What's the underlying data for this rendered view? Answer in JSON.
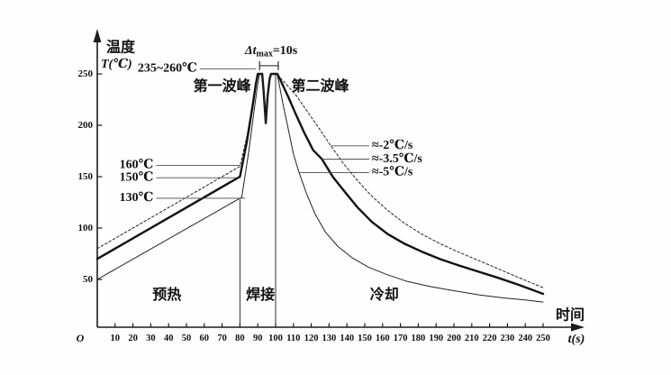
{
  "figure": {
    "description_zone_labels": [
      "预热",
      "焊接",
      "冷却"
    ]
  },
  "chart_data": {
    "type": "line",
    "title": "",
    "xlabel": "时间",
    "xlabel_unit": "t(s)",
    "ylabel": "温度",
    "ylabel_unit": "T(℃)",
    "origin_label": "O",
    "xlim": [
      0,
      270
    ],
    "ylim": [
      0,
      290
    ],
    "x_ticks": [
      10,
      20,
      30,
      40,
      50,
      60,
      70,
      80,
      90,
      100,
      110,
      120,
      130,
      140,
      150,
      160,
      170,
      180,
      190,
      200,
      210,
      220,
      230,
      240,
      250
    ],
    "y_ticks": [
      50,
      100,
      150,
      200,
      250
    ],
    "grid": false,
    "axis_color": "#1b1b1b",
    "leader_color": "#4a4a4a",
    "series": [
      {
        "name": "profile-160C-cooling-2Cs",
        "style": "dotted",
        "width": 1,
        "color": "#222222",
        "points": [
          [
            0,
            80
          ],
          [
            80,
            160
          ],
          [
            84,
            190
          ],
          [
            87,
            221
          ],
          [
            89,
            243
          ],
          [
            90,
            250
          ],
          [
            92.5,
            250
          ],
          [
            93.3,
            233
          ],
          [
            94.5,
            202
          ],
          [
            95.5,
            228
          ],
          [
            96.6,
            245
          ],
          [
            97.4,
            250
          ],
          [
            101,
            250
          ],
          [
            102,
            247
          ],
          [
            106,
            240
          ],
          [
            112,
            228
          ],
          [
            118,
            213
          ],
          [
            124,
            198
          ],
          [
            131,
            180
          ],
          [
            138,
            163
          ],
          [
            146,
            146
          ],
          [
            154,
            131
          ],
          [
            163,
            117
          ],
          [
            172,
            105
          ],
          [
            182,
            94
          ],
          [
            192,
            85
          ],
          [
            202,
            77
          ],
          [
            213,
            69
          ],
          [
            224,
            61
          ],
          [
            236,
            52
          ],
          [
            250,
            42
          ]
        ]
      },
      {
        "name": "profile-150C-cooling-3.5Cs",
        "style": "solid",
        "width": 2.4,
        "color": "#111111",
        "points": [
          [
            0,
            70
          ],
          [
            80,
            150
          ],
          [
            84,
            185
          ],
          [
            87,
            218
          ],
          [
            89,
            241
          ],
          [
            90,
            250
          ],
          [
            92.5,
            250
          ],
          [
            93.3,
            233
          ],
          [
            94.5,
            202
          ],
          [
            95.5,
            228
          ],
          [
            96.6,
            245
          ],
          [
            97.4,
            250
          ],
          [
            101,
            250
          ],
          [
            103,
            243
          ],
          [
            107,
            228
          ],
          [
            111,
            212
          ],
          [
            116,
            193
          ],
          [
            121,
            176
          ],
          [
            126,
            167
          ],
          [
            132,
            150
          ],
          [
            138,
            137
          ],
          [
            146,
            120
          ],
          [
            154,
            106
          ],
          [
            163,
            94
          ],
          [
            172,
            85
          ],
          [
            182,
            77
          ],
          [
            192,
            70
          ],
          [
            202,
            64
          ],
          [
            213,
            58
          ],
          [
            224,
            52
          ],
          [
            236,
            45
          ],
          [
            250,
            36
          ]
        ]
      },
      {
        "name": "profile-130C-cooling-5Cs",
        "style": "solid",
        "width": 1,
        "color": "#222222",
        "points": [
          [
            0,
            50
          ],
          [
            81,
            130
          ],
          [
            85,
            175
          ],
          [
            88,
            215
          ],
          [
            90,
            240
          ],
          [
            91,
            250
          ],
          [
            92.5,
            250
          ],
          [
            93.3,
            233
          ],
          [
            94.5,
            202
          ],
          [
            95.5,
            228
          ],
          [
            96.6,
            245
          ],
          [
            97.4,
            250
          ],
          [
            100.8,
            250
          ],
          [
            102,
            240
          ],
          [
            104,
            222
          ],
          [
            107,
            197
          ],
          [
            110,
            172
          ],
          [
            113,
            155
          ],
          [
            117,
            135
          ],
          [
            122,
            114
          ],
          [
            128,
            96
          ],
          [
            135,
            82
          ],
          [
            143,
            71
          ],
          [
            152,
            62
          ],
          [
            162,
            55
          ],
          [
            174,
            48
          ],
          [
            187,
            43
          ],
          [
            200,
            39
          ],
          [
            214,
            35
          ],
          [
            228,
            32
          ],
          [
            240,
            30
          ],
          [
            250,
            28
          ]
        ]
      }
    ],
    "zone_boundaries": [
      {
        "name": "preheat-solder-boundary",
        "t": 80,
        "T_top": 128
      },
      {
        "name": "solder-cooling-boundary",
        "t": 100,
        "T_top": 250
      }
    ],
    "zones": [
      {
        "id": "zone-preheat",
        "label": "预热",
        "t": 39,
        "T": 34
      },
      {
        "id": "zone-solder",
        "label": "焊接",
        "t": 91.5,
        "T": 34
      },
      {
        "id": "zone-cooling",
        "label": "冷却",
        "t": 161,
        "T": 34
      }
    ],
    "annotations": [
      {
        "id": "peak-temp-range",
        "text": "235~260℃",
        "anchor": "end",
        "t": 56,
        "T": 255,
        "size": 14,
        "leader": {
          "from": [
            57.5,
            255
          ],
          "to": [
            89,
            255
          ]
        }
      },
      {
        "id": "first-wave-peak",
        "text": "第一波峰",
        "anchor": "middle",
        "t": 70,
        "T": 237,
        "size": 16
      },
      {
        "id": "second-wave-peak",
        "text": "第二波峰",
        "anchor": "middle",
        "t": 125,
        "T": 237,
        "size": 16
      },
      {
        "id": "ramp-160",
        "text": "160℃",
        "anchor": "end",
        "t": 31.5,
        "T": 161,
        "size": 14,
        "leader": {
          "from": [
            33,
            161
          ],
          "to": [
            80,
            161
          ]
        }
      },
      {
        "id": "ramp-150",
        "text": "150℃",
        "anchor": "end",
        "t": 31.5,
        "T": 149,
        "size": 14,
        "leader": {
          "from": [
            33,
            149
          ],
          "to": [
            78,
            149
          ]
        }
      },
      {
        "id": "ramp-130",
        "text": "130℃",
        "anchor": "end",
        "t": 31.5,
        "T": 129,
        "size": 14,
        "leader": {
          "from": [
            33,
            129
          ],
          "to": [
            83,
            129
          ]
        }
      },
      {
        "id": "cooling-rate-2",
        "text": "≈-2℃/s",
        "anchor": "start",
        "t": 154,
        "T": 180,
        "size": 14,
        "leader": {
          "from": [
            131,
            180
          ],
          "to": [
            152.5,
            180
          ]
        }
      },
      {
        "id": "cooling-rate-3-5",
        "text": "≈-3.5℃/s",
        "anchor": "start",
        "t": 154,
        "T": 167,
        "size": 14,
        "leader": {
          "from": [
            126,
            167
          ],
          "to": [
            152.5,
            167
          ]
        }
      },
      {
        "id": "cooling-rate-5",
        "text": "≈-5℃/s",
        "anchor": "start",
        "t": 154,
        "T": 154,
        "size": 14,
        "leader": {
          "from": [
            113,
            154
          ],
          "to": [
            152.5,
            154
          ]
        }
      }
    ],
    "delta_t_max": {
      "prefix": "Δt",
      "sub": "max",
      "suffix": "=10s",
      "bracket_t_from": 91,
      "bracket_t_to": 101.5,
      "bracket_T": 258,
      "text_t": 97.5,
      "text_T": 272
    }
  }
}
